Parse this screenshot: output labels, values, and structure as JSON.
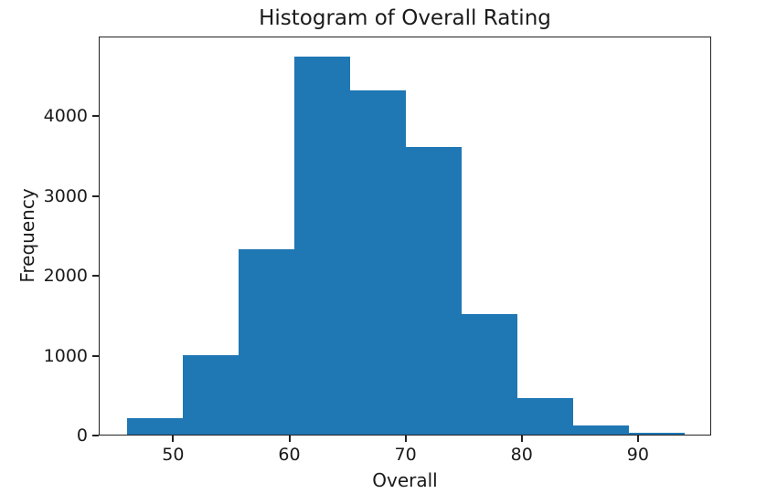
{
  "chart_data": {
    "type": "bar",
    "subtype": "histogram",
    "title": "Histogram of Overall Rating",
    "xlabel": "Overall",
    "ylabel": "Frequency",
    "bin_edges": [
      46,
      50.8,
      55.6,
      60.4,
      65.2,
      70,
      74.8,
      79.6,
      84.4,
      89.2,
      94
    ],
    "counts": [
      215,
      1010,
      2330,
      4750,
      4320,
      3610,
      1520,
      465,
      130,
      30
    ],
    "xticks": [
      50,
      60,
      70,
      80,
      90
    ],
    "yticks": [
      0,
      1000,
      2000,
      3000,
      4000
    ],
    "xtick_labels": [
      "50",
      "60",
      "70",
      "80",
      "90"
    ],
    "ytick_labels": [
      "0",
      "1000",
      "2000",
      "3000",
      "4000"
    ],
    "xlim": [
      43.6,
      96.3
    ],
    "ylim": [
      0,
      5000
    ],
    "bar_color": "#1f77b4",
    "spine_color": "#222222",
    "background_color": "#ffffff",
    "grid": false,
    "legend": null
  }
}
